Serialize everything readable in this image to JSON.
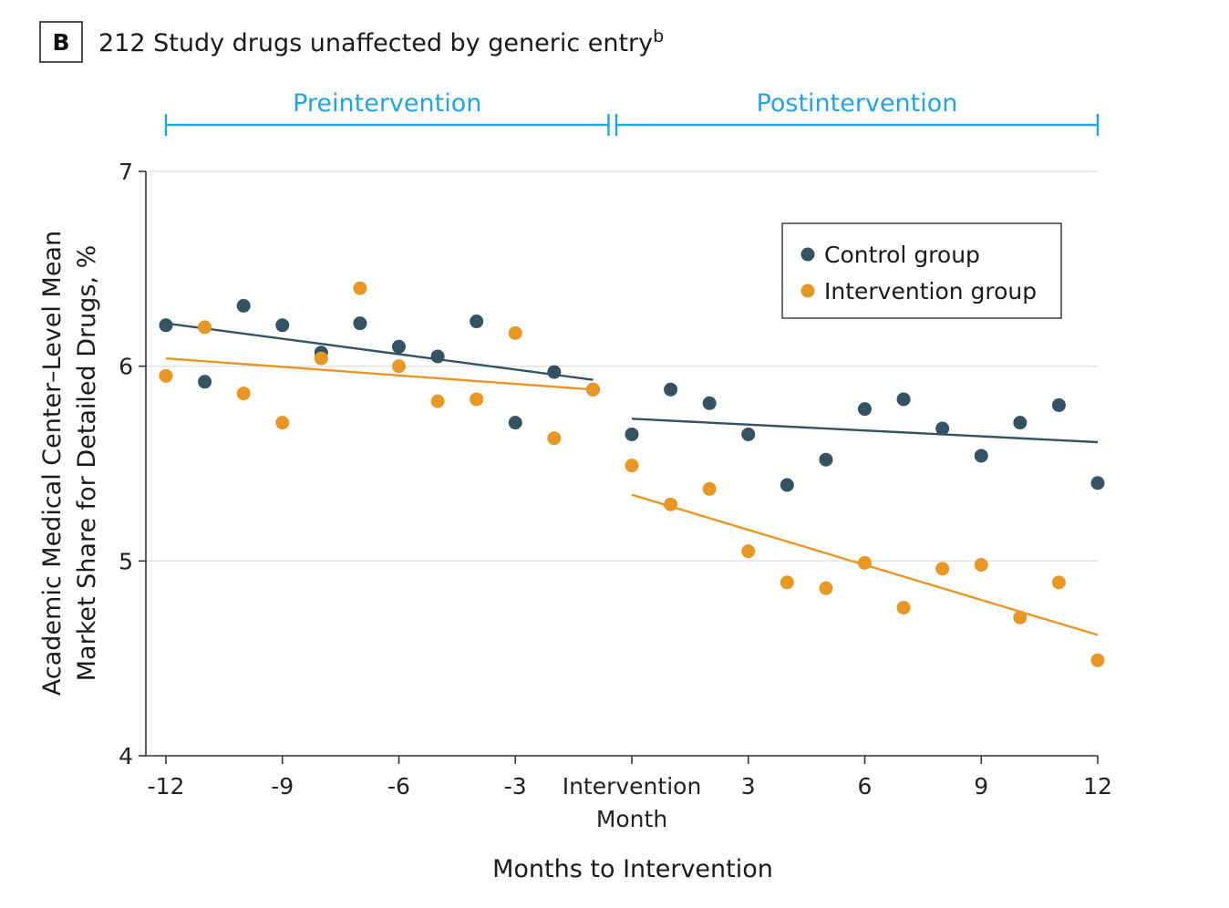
{
  "panel": {
    "letter": "B",
    "title": "212 Study drugs unaffected by generic entry",
    "title_superscript": "b"
  },
  "chart_data": {
    "type": "scatter",
    "phases": [
      {
        "label": "Preintervention",
        "x_range": [
          -12,
          -0.6
        ]
      },
      {
        "label": "Postintervention",
        "x_range": [
          -0.4,
          12
        ]
      }
    ],
    "xlabel": "Months to Intervention",
    "ylabel_lines": [
      "Academic Medical Center–Level Mean",
      "Market Share for Detailed Drugs, %"
    ],
    "xlim": [
      -12,
      12
    ],
    "ylim": [
      4,
      7
    ],
    "x_ticks": [
      {
        "value": -12,
        "label": "-12"
      },
      {
        "value": -9,
        "label": "-9"
      },
      {
        "value": -6,
        "label": "-6"
      },
      {
        "value": -3,
        "label": "-3"
      },
      {
        "value": 0,
        "label": "Intervention",
        "label2": "Month"
      },
      {
        "value": 3,
        "label": "3"
      },
      {
        "value": 6,
        "label": "6"
      },
      {
        "value": 9,
        "label": "9"
      },
      {
        "value": 12,
        "label": "12"
      }
    ],
    "y_ticks": [
      4,
      5,
      6,
      7
    ],
    "grid": "horizontal",
    "legend_position": "top-right",
    "series": [
      {
        "name": "Control group",
        "color": "#34525f",
        "points": [
          [
            -12,
            6.21
          ],
          [
            -11,
            5.92
          ],
          [
            -10,
            6.31
          ],
          [
            -9,
            6.21
          ],
          [
            -8,
            6.07
          ],
          [
            -7,
            6.22
          ],
          [
            -6,
            6.1
          ],
          [
            -5,
            6.05
          ],
          [
            -4,
            6.23
          ],
          [
            -3,
            5.71
          ],
          [
            -2,
            5.97
          ],
          [
            -1,
            5.88
          ],
          [
            0,
            5.65
          ],
          [
            1,
            5.88
          ],
          [
            2,
            5.81
          ],
          [
            3,
            5.65
          ],
          [
            4,
            5.39
          ],
          [
            5,
            5.52
          ],
          [
            6,
            5.78
          ],
          [
            7,
            5.83
          ],
          [
            8,
            5.68
          ],
          [
            9,
            5.54
          ],
          [
            10,
            5.71
          ],
          [
            11,
            5.8
          ],
          [
            12,
            5.4
          ]
        ],
        "trend_lines": [
          {
            "x": [
              -12,
              -1
            ],
            "y": [
              6.22,
              5.93
            ]
          },
          {
            "x": [
              0,
              12
            ],
            "y": [
              5.73,
              5.61
            ]
          }
        ]
      },
      {
        "name": "Intervention group",
        "color": "#e69726",
        "points": [
          [
            -12,
            5.95
          ],
          [
            -11,
            6.2
          ],
          [
            -10,
            5.86
          ],
          [
            -9,
            5.71
          ],
          [
            -8,
            6.04
          ],
          [
            -7,
            6.4
          ],
          [
            -6,
            6.0
          ],
          [
            -5,
            5.82
          ],
          [
            -4,
            5.83
          ],
          [
            -3,
            6.17
          ],
          [
            -2,
            5.63
          ],
          [
            -1,
            5.88
          ],
          [
            0,
            5.49
          ],
          [
            1,
            5.29
          ],
          [
            2,
            5.37
          ],
          [
            3,
            5.05
          ],
          [
            4,
            4.89
          ],
          [
            5,
            4.86
          ],
          [
            6,
            4.99
          ],
          [
            7,
            4.76
          ],
          [
            8,
            4.96
          ],
          [
            9,
            4.98
          ],
          [
            10,
            4.71
          ],
          [
            11,
            4.89
          ],
          [
            12,
            4.49
          ]
        ],
        "trend_lines": [
          {
            "x": [
              -12,
              -1
            ],
            "y": [
              6.04,
              5.88
            ]
          },
          {
            "x": [
              0,
              12
            ],
            "y": [
              5.34,
              4.62
            ]
          }
        ]
      }
    ]
  }
}
